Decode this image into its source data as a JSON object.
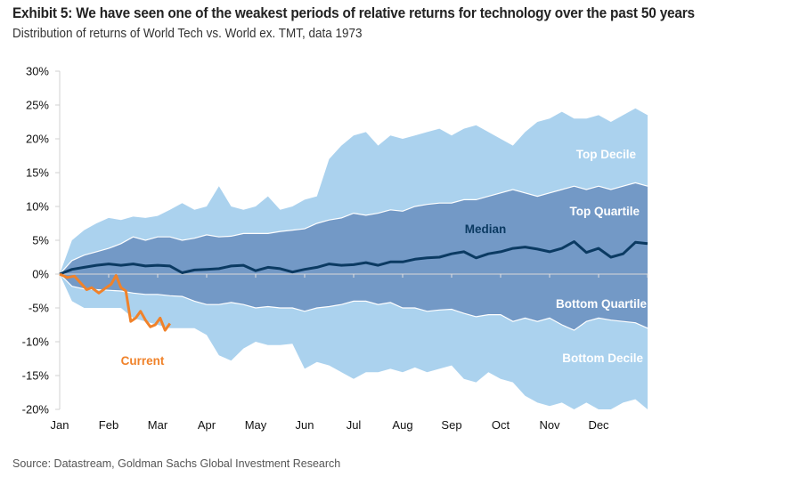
{
  "header": {
    "title": "Exhibit 5: We have seen one of the weakest periods of relative returns for technology over the past 50 years",
    "subtitle": "Distribution of returns of World Tech vs. World ex. TMT, data 1973"
  },
  "footer": {
    "source": "Source: Datastream, Goldman Sachs Global Investment Research"
  },
  "chart_data": {
    "type": "area",
    "title": "Exhibit 5: We have seen one of the weakest periods of relative returns for technology over the past 50 years",
    "subtitle": "Distribution of returns of World Tech vs. World ex. TMT, data 1973",
    "xlabel": "",
    "ylabel": "",
    "ylim": [
      -20,
      30
    ],
    "y_ticks": [
      30,
      25,
      20,
      15,
      10,
      5,
      0,
      -5,
      -10,
      -15,
      -20
    ],
    "y_tick_labels": [
      "30%",
      "25%",
      "20%",
      "15%",
      "10%",
      "5%",
      "0%",
      "-5%",
      "-10%",
      "-15%",
      "-20%"
    ],
    "x_tick_labels": [
      "Jan",
      "Feb",
      "Mar",
      "Apr",
      "May",
      "Jun",
      "Jul",
      "Aug",
      "Sep",
      "Oct",
      "Nov",
      "Dec"
    ],
    "x_unit": "months since start of year (0 = Jan, 12 = year end)",
    "xlim": [
      0,
      12
    ],
    "grid": false,
    "colors": {
      "decile_band": "#abd2ee",
      "quartile_band": "#7399c6",
      "median": "#0b3a62",
      "current": "#f0822a",
      "band_edge": "#ffffff"
    },
    "annotations": [
      {
        "text": "Top Decile",
        "series": "top_decile"
      },
      {
        "text": "Top Quartile",
        "series": "top_quartile"
      },
      {
        "text": "Median",
        "series": "median"
      },
      {
        "text": "Bottom Quartile",
        "series": "bottom_quartile"
      },
      {
        "text": "Bottom Decile",
        "series": "bottom_decile"
      },
      {
        "text": "Current",
        "series": "current"
      }
    ],
    "x": [
      0,
      0.25,
      0.5,
      0.75,
      1,
      1.25,
      1.5,
      1.75,
      2,
      2.25,
      2.5,
      2.75,
      3,
      3.25,
      3.5,
      3.75,
      4,
      4.25,
      4.5,
      4.75,
      5,
      5.25,
      5.5,
      5.75,
      6,
      6.25,
      6.5,
      6.75,
      7,
      7.25,
      7.5,
      7.75,
      8,
      8.25,
      8.5,
      8.75,
      9,
      9.25,
      9.5,
      9.75,
      10,
      10.25,
      10.5,
      10.75,
      11,
      11.25,
      11.5,
      11.75,
      12
    ],
    "series": [
      {
        "name": "Top Decile",
        "key": "top_decile",
        "values": [
          0,
          5,
          6.5,
          7.5,
          8.3,
          8,
          8.5,
          8.3,
          8.6,
          9.5,
          10.5,
          9.5,
          10,
          13,
          10,
          9.5,
          10,
          11.5,
          9.5,
          10,
          11,
          11.5,
          17,
          19,
          20.5,
          21,
          19,
          20.5,
          20,
          20.5,
          21,
          21.5,
          20.5,
          21.5,
          22,
          21,
          20,
          19,
          21,
          22.5,
          23,
          24,
          23,
          23,
          23.5,
          22.5,
          23.5,
          24.5,
          23.5
        ]
      },
      {
        "name": "Top Quartile",
        "key": "top_quartile",
        "values": [
          0,
          2,
          2.8,
          3.3,
          3.8,
          4.5,
          5.5,
          5,
          5.5,
          5.5,
          5,
          5.3,
          5.8,
          5.5,
          5.6,
          6,
          6,
          6,
          6.3,
          6.5,
          6.7,
          7.5,
          8,
          8.3,
          9,
          8.7,
          9,
          9.5,
          9.3,
          10,
          10.3,
          10.5,
          10.5,
          11,
          11,
          11.5,
          12,
          12.5,
          12,
          11.5,
          12,
          12.5,
          13,
          12.5,
          13,
          12.5,
          13,
          13.5,
          13
        ]
      },
      {
        "name": "Median",
        "key": "median",
        "values": [
          0,
          0.7,
          1,
          1.3,
          1.5,
          1.3,
          1.5,
          1.2,
          1.3,
          1.2,
          0.2,
          0.6,
          0.7,
          0.8,
          1.2,
          1.3,
          0.5,
          1,
          0.8,
          0.3,
          0.7,
          1,
          1.5,
          1.3,
          1.4,
          1.7,
          1.3,
          1.8,
          1.8,
          2.2,
          2.4,
          2.5,
          3,
          3.3,
          2.4,
          3,
          3.3,
          3.8,
          4,
          3.7,
          3.3,
          3.8,
          4.8,
          3.2,
          3.8,
          2.5,
          3,
          4.7,
          4.5
        ]
      },
      {
        "name": "Bottom Quartile",
        "key": "bottom_quartile",
        "values": [
          0,
          -1.8,
          -2.2,
          -2.3,
          -2.4,
          -2.5,
          -2.8,
          -3,
          -3,
          -3.2,
          -3.3,
          -4,
          -4.5,
          -4.5,
          -4.2,
          -4.5,
          -5,
          -4.8,
          -5,
          -5,
          -5.5,
          -5,
          -4.8,
          -4.5,
          -4,
          -4,
          -4.5,
          -4.2,
          -5,
          -5,
          -5.5,
          -5.3,
          -5.2,
          -5.8,
          -6.3,
          -6,
          -6,
          -7,
          -6.5,
          -7,
          -6.5,
          -7.5,
          -8.3,
          -7,
          -6.5,
          -6.8,
          -7,
          -7.2,
          -8
        ]
      },
      {
        "name": "Bottom Decile",
        "key": "bottom_decile",
        "values": [
          0,
          -4,
          -5,
          -5,
          -5,
          -5,
          -6.5,
          -7,
          -7.5,
          -8,
          -8,
          -8,
          -9,
          -12,
          -12.8,
          -11,
          -10,
          -10.5,
          -10.5,
          -10.3,
          -14,
          -13,
          -13.5,
          -14.5,
          -15.5,
          -14.5,
          -14.5,
          -14,
          -14.5,
          -13.8,
          -14.5,
          -14,
          -13.5,
          -15.5,
          -16,
          -14.5,
          -15.5,
          -16,
          -18,
          -19,
          -19.5,
          -19,
          -20.5,
          -19,
          -21,
          -20.5,
          -19,
          -18.5,
          -22
        ]
      },
      {
        "name": "Current",
        "key": "current",
        "x": [
          0,
          0.15,
          0.3,
          0.45,
          0.55,
          0.65,
          0.8,
          0.95,
          1.05,
          1.15,
          1.25,
          1.35,
          1.45,
          1.55,
          1.65,
          1.75,
          1.85,
          1.95,
          2.05,
          2.15,
          2.25
        ],
        "values": [
          0,
          -0.5,
          -0.3,
          -1.5,
          -2.3,
          -2,
          -2.8,
          -2,
          -1.5,
          -0.2,
          -2,
          -2.5,
          -7,
          -6.5,
          -5.5,
          -6.8,
          -7.8,
          -7.5,
          -6.5,
          -8.3,
          -7.3
        ]
      }
    ]
  }
}
